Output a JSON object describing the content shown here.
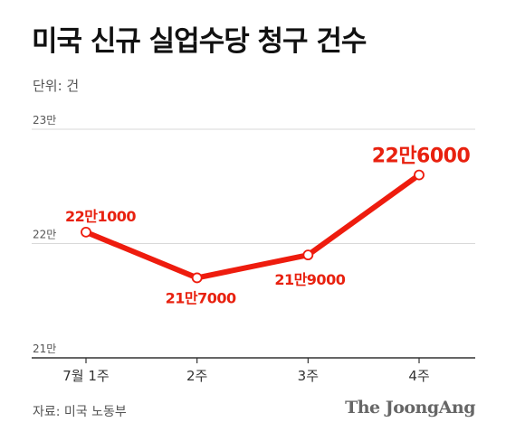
{
  "title": "미국 신규 실업수당 청구 건수",
  "unit_label": "단위: 건",
  "source": "자료: 미국 노동부",
  "brand": "The JoongAng",
  "colors": {
    "line": "#ee1c0e",
    "label": "#e8210f",
    "grid": "#d9d9d9",
    "axis": "#333333",
    "tick_text": "#555555"
  },
  "chart_data": {
    "type": "line",
    "title": "미국 신규 실업수당 청구 건수",
    "unit": "단위: 건",
    "categories": [
      "7월 1주",
      "2주",
      "3주",
      "4주"
    ],
    "series": [
      {
        "values": [
          221000,
          217000,
          219000,
          226000
        ]
      }
    ],
    "data_labels": [
      "22만1000",
      "21만7000",
      "21만9000",
      "22만6000"
    ],
    "ylim": [
      210000,
      230000
    ],
    "yticks": [
      {
        "value": 210000,
        "label": "21만"
      },
      {
        "value": 220000,
        "label": "22만"
      },
      {
        "value": 230000,
        "label": "23만"
      }
    ],
    "grid": true
  }
}
